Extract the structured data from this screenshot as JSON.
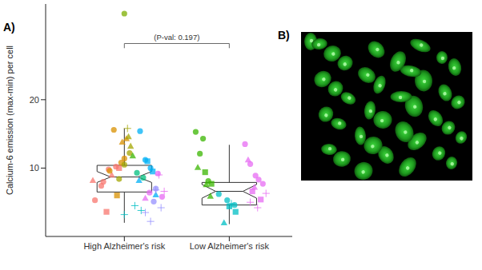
{
  "panels": [
    "A)",
    "B)"
  ],
  "chart_data": {
    "type": "box",
    "y_label": "Calcium-6 emission (max-min) per cell",
    "annotations": [
      "(P-val: 0.197)"
    ],
    "xlim": [
      0.25,
      2.6
    ],
    "xticks": [
      {
        "value": 1,
        "label": "High Alzheimer's risk"
      },
      {
        "value": 2,
        "label": "Low Alzheimer's risk"
      }
    ],
    "ylim": [
      0,
      34
    ],
    "yticks": [
      10,
      20
    ],
    "grid": false,
    "boxes": [
      {
        "x": 1,
        "whisker_low": 2.0,
        "q1": 6.5,
        "median": 8.7,
        "q3": 10.4,
        "whisker_high": 15.8,
        "notch_low": 7.9,
        "notch_high": 9.5
      },
      {
        "x": 2,
        "whisker_low": 1.8,
        "q1": 4.6,
        "median": 6.6,
        "q3": 7.9,
        "whisker_high": 13.4,
        "notch_low": 5.6,
        "notch_high": 7.6
      }
    ],
    "series": [
      {
        "color": "#F8766D",
        "marker": "circle",
        "x": [
          0.72,
          0.8,
          0.85,
          0.92,
          0.78
        ],
        "values": [
          5.3,
          8.0,
          9.8,
          10.2,
          7.4
        ]
      },
      {
        "color": "#F8766D",
        "marker": "triangle",
        "x": [
          0.7,
          0.88
        ],
        "values": [
          8.2,
          9.0
        ]
      },
      {
        "color": "#F8766D",
        "marker": "square",
        "x": [
          0.83,
          0.95
        ],
        "values": [
          3.6,
          10.0
        ]
      },
      {
        "color": "#D89000",
        "marker": "circle",
        "x": [
          0.9,
          0.97,
          1.0,
          0.86
        ],
        "values": [
          15.6,
          10.8,
          11.4,
          9.6
        ]
      },
      {
        "color": "#D89000",
        "marker": "triangle",
        "x": [
          0.98,
          1.02
        ],
        "values": [
          13.8,
          14.3
        ]
      },
      {
        "color": "#D89000",
        "marker": "square",
        "x": [
          0.93
        ],
        "values": [
          6.0
        ]
      },
      {
        "color": "#A3A500",
        "marker": "circle",
        "x": [
          1.0,
          1.05,
          0.95
        ],
        "values": [
          10.5,
          12.2,
          8.4
        ]
      },
      {
        "color": "#A3A500",
        "marker": "triangle",
        "x": [
          1.04,
          1.06
        ],
        "values": [
          14.6,
          13.2
        ]
      },
      {
        "color": "#A3A500",
        "marker": "cross",
        "x": [
          1.03
        ],
        "values": [
          15.8
        ]
      },
      {
        "color": "#7CAE00",
        "marker": "circle",
        "x": [
          1.0
        ],
        "values": [
          32.6
        ]
      },
      {
        "color": "#39B600",
        "marker": "triangle",
        "x": [
          1.08
        ],
        "values": [
          11.8
        ]
      },
      {
        "color": "#00BF7D",
        "marker": "circle",
        "x": [
          1.12,
          1.18
        ],
        "values": [
          9.3,
          8.6
        ]
      },
      {
        "color": "#00BFC4",
        "marker": "cross",
        "x": [
          1.0,
          1.1,
          1.16
        ],
        "values": [
          3.2,
          4.5,
          3.8
        ]
      },
      {
        "color": "#00B0F6",
        "marker": "circle",
        "x": [
          1.15,
          1.2,
          1.25
        ],
        "values": [
          15.4,
          11.2,
          10.0
        ]
      },
      {
        "color": "#00B0F6",
        "marker": "square",
        "x": [
          1.22,
          1.27
        ],
        "values": [
          11.0,
          9.5
        ]
      },
      {
        "color": "#00B0F6",
        "marker": "triangle",
        "x": [
          1.14,
          1.3
        ],
        "values": [
          8.2,
          6.1
        ]
      },
      {
        "color": "#9590FF",
        "marker": "cross",
        "x": [
          1.2,
          1.3,
          1.35,
          1.25
        ],
        "values": [
          3.5,
          6.8,
          4.2,
          2.2
        ]
      },
      {
        "color": "#9590FF",
        "marker": "circle",
        "x": [
          1.3,
          1.28
        ],
        "values": [
          7.0,
          5.1
        ]
      },
      {
        "color": "#E76BF3",
        "marker": "circle",
        "x": [
          1.32,
          1.36,
          1.24
        ],
        "values": [
          9.2,
          5.8,
          6.4
        ]
      },
      {
        "color": "#E76BF3",
        "marker": "triangle",
        "x": [
          1.2
        ],
        "values": [
          5.6
        ]
      },
      {
        "color": "#E76BF3",
        "marker": "cross",
        "x": [
          1.38,
          1.33
        ],
        "values": [
          6.6,
          9.0
        ]
      },
      {
        "color": "#39B600",
        "marker": "circle",
        "x": [
          1.68,
          1.75,
          1.72,
          1.8
        ],
        "values": [
          15.3,
          14.3,
          12.1,
          8.1
        ]
      },
      {
        "color": "#39B600",
        "marker": "triangle",
        "x": [
          1.7,
          1.78,
          1.82
        ],
        "values": [
          10.1,
          7.6,
          5.9
        ]
      },
      {
        "color": "#39B600",
        "marker": "square",
        "x": [
          1.77,
          1.83
        ],
        "values": [
          9.4,
          7.7
        ]
      },
      {
        "color": "#00BFC4",
        "marker": "circle",
        "x": [
          1.9,
          1.98,
          2.05
        ],
        "values": [
          6.2,
          5.3,
          4.6
        ]
      },
      {
        "color": "#00BFC4",
        "marker": "square",
        "x": [
          2.0,
          2.06
        ],
        "values": [
          4.4,
          3.6
        ]
      },
      {
        "color": "#00BFC4",
        "marker": "triangle",
        "x": [
          1.95
        ],
        "values": [
          2.0
        ]
      },
      {
        "color": "#00BFC4",
        "marker": "cross",
        "x": [
          2.02
        ],
        "values": [
          4.8
        ]
      },
      {
        "color": "#E76BF3",
        "marker": "circle",
        "x": [
          2.15,
          2.2,
          2.25,
          2.28,
          2.32
        ],
        "values": [
          13.5,
          10.6,
          8.9,
          8.3,
          7.7
        ]
      },
      {
        "color": "#E76BF3",
        "marker": "triangle",
        "x": [
          2.18,
          2.24
        ],
        "values": [
          11.2,
          7.2
        ]
      },
      {
        "color": "#E76BF3",
        "marker": "square",
        "x": [
          2.22,
          2.3
        ],
        "values": [
          6.6,
          5.4
        ]
      },
      {
        "color": "#E76BF3",
        "marker": "cross",
        "x": [
          2.27,
          2.35,
          2.2
        ],
        "values": [
          4.2,
          6.3,
          5.0
        ]
      }
    ]
  }
}
